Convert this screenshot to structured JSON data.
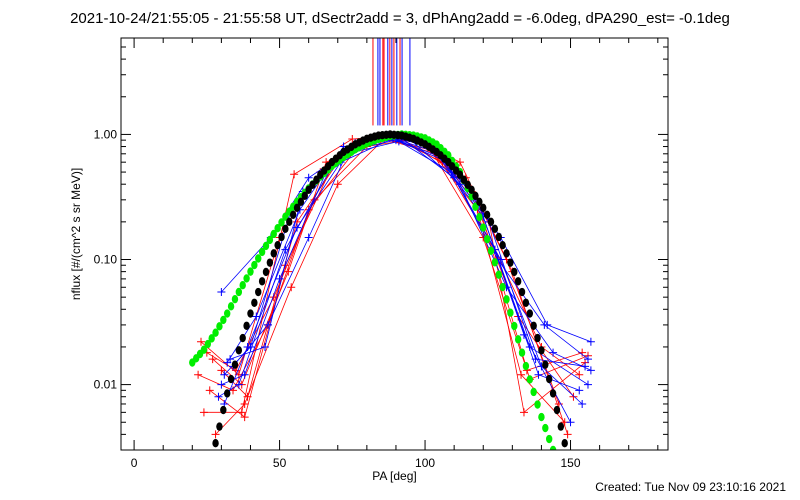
{
  "chart_data": {
    "type": "line",
    "title": "2021-10-24/21:55:05 - 21:55:58 UT, dSectr2add = 3, dPhAng2add = -6.0deg, dPA290_est= -0.1deg",
    "xlabel": "PA [deg]",
    "ylabel": "nflux [#/(cm^2 s sr MeV)]",
    "xlim": [
      -4.5,
      183.5
    ],
    "ylim": [
      0.003,
      5.9
    ],
    "yscale": "log",
    "xticks": [
      0,
      50,
      100,
      150
    ],
    "xtick_labels": [
      "0",
      "50",
      "100",
      "150"
    ],
    "yticks": [
      0.01,
      0.1,
      1.0
    ],
    "ytick_labels": [
      "0.01",
      "0.10",
      "1.00"
    ],
    "colors": {
      "red": "#ff0000",
      "blue": "#0000ff",
      "black": "#000000",
      "green": "#00ee00"
    },
    "vertical_lines": {
      "y_from": 1.18,
      "lines": [
        {
          "x": 82.1,
          "color": "red"
        },
        {
          "x": 83.8,
          "color": "blue"
        },
        {
          "x": 84.5,
          "color": "blue"
        },
        {
          "x": 85.5,
          "color": "red"
        },
        {
          "x": 85.9,
          "color": "red"
        },
        {
          "x": 87.2,
          "color": "blue"
        },
        {
          "x": 87.9,
          "color": "red"
        },
        {
          "x": 88.6,
          "color": "blue"
        },
        {
          "x": 89.3,
          "color": "red"
        },
        {
          "x": 90.3,
          "color": "blue"
        },
        {
          "x": 91.4,
          "color": "red"
        },
        {
          "x": 92.1,
          "color": "blue"
        },
        {
          "x": 94.8,
          "color": "blue"
        }
      ]
    },
    "series": [
      {
        "name": "red-1",
        "color": "red",
        "x": [
          24,
          37,
          55,
          75,
          88,
          106,
          124,
          140,
          153
        ],
        "y": [
          0.006,
          0.006,
          0.48,
          0.92,
          0.97,
          0.6,
          0.12,
          0.02,
          0.012
        ]
      },
      {
        "name": "red-2",
        "color": "red",
        "x": [
          26,
          38,
          52,
          68,
          84,
          100,
          118,
          133,
          148
        ],
        "y": [
          0.009,
          0.0055,
          0.09,
          0.55,
          0.95,
          0.85,
          0.25,
          0.012,
          0.005
        ]
      },
      {
        "name": "red-3",
        "color": "red",
        "x": [
          23,
          36,
          50,
          64,
          82,
          98,
          116,
          132,
          151
        ],
        "y": [
          0.022,
          0.012,
          0.15,
          0.5,
          0.9,
          0.9,
          0.35,
          0.035,
          0.008
        ]
      },
      {
        "name": "red-4",
        "color": "red",
        "x": [
          28,
          38,
          54,
          70,
          86,
          102,
          120,
          135,
          154
        ],
        "y": [
          0.004,
          0.007,
          0.06,
          0.4,
          0.92,
          0.75,
          0.15,
          0.013,
          0.018
        ]
      },
      {
        "name": "red-5",
        "color": "red",
        "x": [
          25,
          35,
          48,
          62,
          80,
          96,
          114,
          130,
          149
        ],
        "y": [
          0.018,
          0.013,
          0.05,
          0.3,
          0.8,
          0.92,
          0.45,
          0.08,
          0.004
        ]
      },
      {
        "name": "red-6",
        "color": "red",
        "x": [
          30,
          39,
          56,
          72,
          90,
          108,
          122,
          134,
          155
        ],
        "y": [
          0.013,
          0.008,
          0.2,
          0.7,
          0.98,
          0.55,
          0.2,
          0.006,
          0.015
        ]
      },
      {
        "name": "red-7",
        "color": "red",
        "x": [
          22,
          34,
          46,
          60,
          78,
          94,
          112,
          128,
          146
        ],
        "y": [
          0.012,
          0.009,
          0.03,
          0.25,
          0.85,
          0.97,
          0.6,
          0.1,
          0.007
        ]
      },
      {
        "name": "red-8",
        "color": "red",
        "x": [
          27,
          37,
          53,
          66,
          85,
          104,
          118,
          136,
          156
        ],
        "y": [
          0.016,
          0.01,
          0.08,
          0.6,
          0.93,
          0.7,
          0.3,
          0.011,
          0.017
        ]
      },
      {
        "name": "blue-1",
        "color": "blue",
        "x": [
          30,
          47,
          60,
          74,
          90,
          108,
          126,
          142,
          157
        ],
        "y": [
          0.055,
          0.15,
          0.45,
          0.75,
          0.9,
          0.6,
          0.15,
          0.03,
          0.022
        ]
      },
      {
        "name": "blue-2",
        "color": "blue",
        "x": [
          31,
          40,
          54,
          70,
          88,
          104,
          122,
          138,
          155
        ],
        "y": [
          0.012,
          0.02,
          0.25,
          0.65,
          0.95,
          0.72,
          0.2,
          0.016,
          0.014
        ]
      },
      {
        "name": "blue-3",
        "color": "blue",
        "x": [
          29,
          36,
          52,
          68,
          86,
          102,
          120,
          136,
          156
        ],
        "y": [
          0.008,
          0.01,
          0.12,
          0.55,
          0.98,
          0.8,
          0.22,
          0.02,
          0.01
        ]
      },
      {
        "name": "blue-4",
        "color": "blue",
        "x": [
          32,
          42,
          57,
          72,
          92,
          110,
          126,
          140,
          154
        ],
        "y": [
          0.015,
          0.035,
          0.25,
          0.8,
          0.93,
          0.45,
          0.1,
          0.014,
          0.007
        ]
      },
      {
        "name": "blue-5",
        "color": "blue",
        "x": [
          30,
          38,
          50,
          66,
          84,
          100,
          118,
          134,
          150
        ],
        "y": [
          0.01,
          0.012,
          0.07,
          0.5,
          0.97,
          0.88,
          0.3,
          0.025,
          0.005
        ]
      },
      {
        "name": "blue-6",
        "color": "blue",
        "x": [
          33,
          45,
          58,
          76,
          94,
          112,
          128,
          144,
          157
        ],
        "y": [
          0.016,
          0.02,
          0.35,
          0.85,
          0.95,
          0.4,
          0.06,
          0.018,
          0.013
        ]
      },
      {
        "name": "blue-7",
        "color": "blue",
        "x": [
          31,
          39,
          56,
          71,
          89,
          106,
          124,
          139,
          153
        ],
        "y": [
          0.007,
          0.02,
          0.18,
          0.6,
          0.93,
          0.65,
          0.12,
          0.012,
          0.009
        ]
      },
      {
        "name": "blue-8",
        "color": "blue",
        "x": [
          34,
          46,
          60,
          73,
          91,
          109,
          125,
          141,
          156
        ],
        "y": [
          0.014,
          0.03,
          0.15,
          0.7,
          0.88,
          0.5,
          0.1,
          0.03,
          0.016
        ]
      }
    ],
    "fits": [
      {
        "name": "green-fit",
        "color": "green",
        "x": [
          20,
          24,
          28,
          32,
          36,
          40,
          44,
          48,
          52,
          56,
          60,
          64,
          68,
          72,
          76,
          80,
          84,
          88,
          92,
          96,
          100,
          104,
          108,
          112,
          116,
          120,
          124,
          128,
          132,
          136,
          140,
          144
        ],
        "y": [
          0.015,
          0.019,
          0.026,
          0.037,
          0.055,
          0.08,
          0.115,
          0.16,
          0.22,
          0.29,
          0.37,
          0.46,
          0.56,
          0.66,
          0.76,
          0.85,
          0.92,
          0.97,
          1.0,
          0.98,
          0.93,
          0.83,
          0.68,
          0.5,
          0.32,
          0.18,
          0.095,
          0.048,
          0.023,
          0.011,
          0.0055,
          0.003
        ]
      },
      {
        "name": "black-fit",
        "color": "black",
        "x": [
          28,
          32,
          36,
          40,
          44,
          48,
          52,
          56,
          60,
          64,
          68,
          72,
          76,
          80,
          84,
          88,
          92,
          96,
          100,
          104,
          108,
          112,
          116,
          120,
          124,
          128,
          132,
          136,
          140,
          144,
          148
        ],
        "y": [
          0.0034,
          0.0085,
          0.0188,
          0.037,
          0.067,
          0.112,
          0.176,
          0.259,
          0.361,
          0.476,
          0.601,
          0.724,
          0.834,
          0.923,
          0.98,
          1.0,
          0.98,
          0.923,
          0.834,
          0.724,
          0.601,
          0.476,
          0.361,
          0.259,
          0.176,
          0.112,
          0.067,
          0.037,
          0.0188,
          0.0085,
          0.0034
        ]
      }
    ]
  },
  "footer": {
    "created": "Created: Tue Nov 09 23:10:16 2021"
  }
}
